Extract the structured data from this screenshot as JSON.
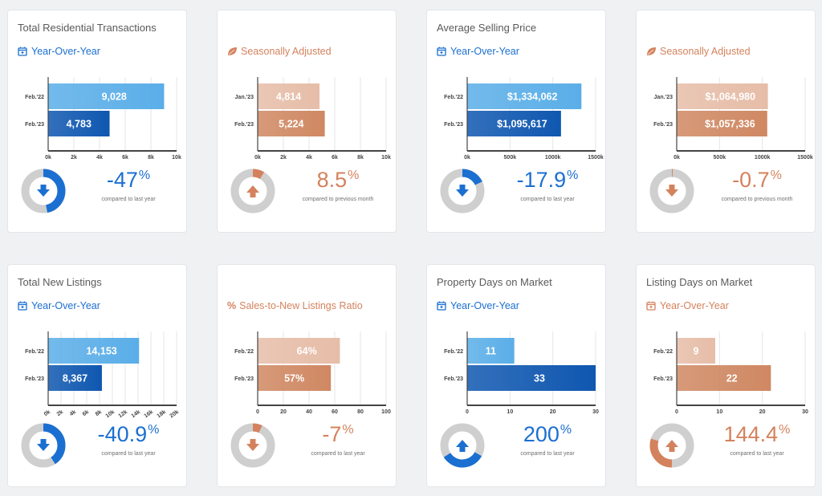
{
  "colors": {
    "blue_light": "#5aaee8",
    "blue_dark": "#0f57b0",
    "orange_light": "#e6bda8",
    "orange_dark": "#cf8862",
    "donut_grey": "#cfcfcf",
    "kpi_blue": "#1b6fd1",
    "kpi_orange": "#d4825d"
  },
  "cards": [
    {
      "title": "Total Residential Transactions",
      "subtitle": "Year-Over-Year",
      "subtitle_icon": "calendar-icon",
      "theme": "blue",
      "kpi_value": "-47",
      "kpi_unit": "%",
      "kpi_note": "compared to last year",
      "arrow": "down",
      "donut_fraction": 0.47,
      "chart_data": {
        "type": "bar",
        "orientation": "horizontal",
        "categories": [
          "Feb.'22",
          "Feb.'23"
        ],
        "values": [
          9028,
          4783
        ],
        "labels": [
          "9,028",
          "4,783"
        ],
        "xlim": [
          0,
          10000
        ],
        "xticks": [
          0,
          2000,
          4000,
          6000,
          8000,
          10000
        ],
        "xtick_labels": [
          "0k",
          "2k",
          "4k",
          "6k",
          "8k",
          "10k"
        ]
      }
    },
    {
      "title": "",
      "subtitle": "Seasonally Adjusted",
      "subtitle_icon": "leaf-icon",
      "theme": "orange",
      "kpi_value": "8.5",
      "kpi_unit": "%",
      "kpi_note": "compared to previous month",
      "arrow": "up",
      "donut_fraction": 0.085,
      "chart_data": {
        "type": "bar",
        "orientation": "horizontal",
        "categories": [
          "Jan.'23",
          "Feb.'23"
        ],
        "values": [
          4814,
          5224
        ],
        "labels": [
          "4,814",
          "5,224"
        ],
        "xlim": [
          0,
          10000
        ],
        "xticks": [
          0,
          2000,
          4000,
          6000,
          8000,
          10000
        ],
        "xtick_labels": [
          "0k",
          "2k",
          "4k",
          "6k",
          "8k",
          "10k"
        ]
      }
    },
    {
      "title": "Average Selling Price",
      "subtitle": "Year-Over-Year",
      "subtitle_icon": "calendar-icon",
      "theme": "blue",
      "kpi_value": "-17.9",
      "kpi_unit": "%",
      "kpi_note": "compared to last year",
      "arrow": "down",
      "donut_fraction": 0.179,
      "chart_data": {
        "type": "bar",
        "orientation": "horizontal",
        "categories": [
          "Feb.'22",
          "Feb.'23"
        ],
        "values": [
          1334062,
          1095617
        ],
        "labels": [
          "$1,334,062",
          "$1,095,617"
        ],
        "xlim": [
          0,
          1500000
        ],
        "xticks": [
          0,
          500000,
          1000000,
          1500000
        ],
        "xtick_labels": [
          "0k",
          "500k",
          "1000k",
          "1500k"
        ]
      }
    },
    {
      "title": "",
      "subtitle": "Seasonally Adjusted",
      "subtitle_icon": "leaf-icon",
      "theme": "orange",
      "kpi_value": "-0.7",
      "kpi_unit": "%",
      "kpi_note": "compared to previous month",
      "arrow": "down",
      "donut_fraction": 0.007,
      "chart_data": {
        "type": "bar",
        "orientation": "horizontal",
        "categories": [
          "Jan.'23",
          "Feb.'23"
        ],
        "values": [
          1064980,
          1057336
        ],
        "labels": [
          "$1,064,980",
          "$1,057,336"
        ],
        "xlim": [
          0,
          1500000
        ],
        "xticks": [
          0,
          500000,
          1000000,
          1500000
        ],
        "xtick_labels": [
          "0k",
          "500k",
          "1000k",
          "1500k"
        ]
      }
    },
    {
      "title": "Total New Listings",
      "subtitle": "Year-Over-Year",
      "subtitle_icon": "calendar-icon",
      "theme": "blue",
      "kpi_value": "-40.9",
      "kpi_unit": "%",
      "kpi_note": "compared to last year",
      "arrow": "down",
      "donut_fraction": 0.409,
      "chart_data": {
        "type": "bar",
        "orientation": "horizontal",
        "categories": [
          "Feb.'22",
          "Feb.'23"
        ],
        "values": [
          14153,
          8367
        ],
        "labels": [
          "14,153",
          "8,367"
        ],
        "xlim": [
          0,
          20000
        ],
        "xticks": [
          0,
          2000,
          4000,
          6000,
          8000,
          10000,
          12000,
          14000,
          16000,
          18000,
          20000
        ],
        "xtick_labels": [
          "0k",
          "2k",
          "4k",
          "6k",
          "8k",
          "10k",
          "12k",
          "14k",
          "16k",
          "18k",
          "20k"
        ],
        "rotated_ticks": true
      }
    },
    {
      "title": "",
      "subtitle": "Sales-to-New Listings Ratio",
      "subtitle_icon": "percent-icon",
      "subtitle_icon_text": "%",
      "theme": "orange",
      "kpi_value": "-7",
      "kpi_unit": "%",
      "kpi_note": "compared to last year",
      "arrow": "down",
      "donut_fraction": 0.07,
      "chart_data": {
        "type": "bar",
        "orientation": "horizontal",
        "categories": [
          "Feb.'22",
          "Feb.'23"
        ],
        "values": [
          64,
          57
        ],
        "labels": [
          "64%",
          "57%"
        ],
        "xlim": [
          0,
          100
        ],
        "xticks": [
          0,
          20,
          40,
          60,
          80,
          100
        ],
        "xtick_labels": [
          "0",
          "20",
          "40",
          "60",
          "80",
          "100"
        ]
      }
    },
    {
      "title": "Property Days on Market",
      "subtitle": "Year-Over-Year",
      "subtitle_icon": "calendar-icon",
      "theme": "blue",
      "kpi_value": "200",
      "kpi_unit": "%",
      "kpi_note": "compared to last year",
      "arrow": "up",
      "donut_fraction": 0.33,
      "donut_start": 0.33,
      "chart_data": {
        "type": "bar",
        "orientation": "horizontal",
        "categories": [
          "Feb.'22",
          "Feb.'23"
        ],
        "values": [
          11,
          33
        ],
        "labels": [
          "11",
          "33"
        ],
        "xlim": [
          0,
          30
        ],
        "xticks": [
          0,
          10,
          20,
          30
        ],
        "xtick_labels": [
          "0",
          "10",
          "20",
          "30"
        ]
      }
    },
    {
      "title": "Listing Days on Market",
      "subtitle": "Year-Over-Year",
      "subtitle_icon": "calendar-icon",
      "theme": "orange",
      "kpi_value": "144.4",
      "kpi_unit": "%",
      "kpi_note": "compared to last year",
      "arrow": "up",
      "donut_fraction": 0.3,
      "donut_start": 0.5,
      "chart_data": {
        "type": "bar",
        "orientation": "horizontal",
        "categories": [
          "Feb.'22",
          "Feb.'23"
        ],
        "values": [
          9,
          22
        ],
        "labels": [
          "9",
          "22"
        ],
        "xlim": [
          0,
          30
        ],
        "xticks": [
          0,
          10,
          20,
          30
        ],
        "xtick_labels": [
          "0",
          "10",
          "20",
          "30"
        ]
      }
    }
  ]
}
